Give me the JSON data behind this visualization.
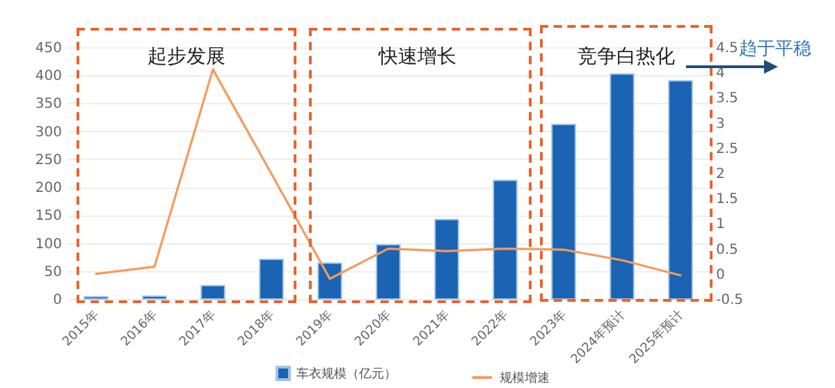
{
  "chart_data": {
    "type": "bar",
    "categories": [
      "2015年",
      "2016年",
      "2017年",
      "2018年",
      "2019年",
      "2020年",
      "2021年",
      "2022年",
      "2023年",
      "2024年预计",
      "2025年预计"
    ],
    "series": [
      {
        "name": "车衣规模（亿元）",
        "color": "#1b63b3",
        "values": [
          4,
          5,
          24,
          71,
          64,
          97,
          142,
          212,
          312,
          402,
          390
        ]
      },
      {
        "name": "规模增速",
        "type": "line",
        "axis": "y2",
        "color": "#f59a5c",
        "values": [
          0,
          0.14,
          4.06,
          1.99,
          -0.1,
          0.5,
          0.45,
          0.5,
          0.48,
          0.27,
          -0.03
        ]
      }
    ],
    "ylim": [
      0,
      450
    ],
    "yticks": [
      0,
      50,
      100,
      150,
      200,
      250,
      300,
      350,
      400,
      450
    ],
    "y2lim": [
      -0.5,
      4.5
    ],
    "y2ticks": [
      -0.5,
      0,
      0.5,
      1,
      1.5,
      2,
      2.5,
      3,
      3.5,
      4,
      4.5
    ],
    "annotations": [
      "起步发展",
      "快速增长",
      "竞争白热化",
      "趋于平稳"
    ],
    "grid": "y",
    "legend": "bottom",
    "line_style": "solid"
  }
}
